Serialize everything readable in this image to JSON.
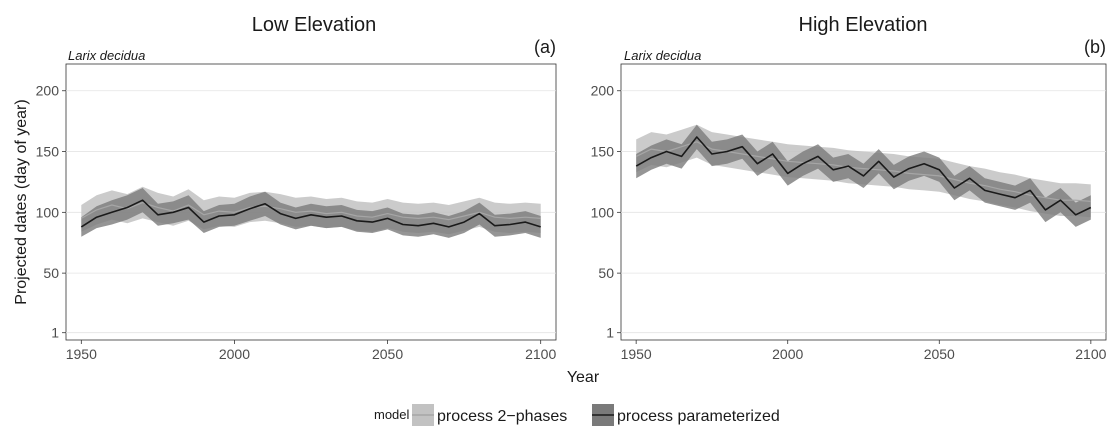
{
  "figure": {
    "shared_ylabel": "Projected dates (day of year)",
    "shared_xlabel": "Year"
  },
  "legend": {
    "title": "model",
    "entries": [
      {
        "name": "process 2−phases",
        "fill": "#c2c2c2",
        "line": "#a6a6a6"
      },
      {
        "name": "process parameterized",
        "fill": "#7a7a7a",
        "line": "#1a1a1a"
      }
    ]
  },
  "chart_data": [
    {
      "type": "line",
      "title": "Low Elevation",
      "panel_tag": "(a)",
      "species": "Larix decidua",
      "xlabel": "Year",
      "ylabel": "Projected dates (day of year)",
      "xlim": [
        1945,
        2105
      ],
      "ylim": [
        -5,
        222
      ],
      "xticks": [
        1950,
        2000,
        2050,
        2100
      ],
      "yticks": [
        1,
        50,
        100,
        150,
        200
      ],
      "grid": true,
      "legend_position": "bottom",
      "x": [
        1950,
        1955,
        1960,
        1965,
        1970,
        1975,
        1980,
        1985,
        1990,
        1995,
        2000,
        2005,
        2010,
        2015,
        2020,
        2025,
        2030,
        2035,
        2040,
        2045,
        2050,
        2055,
        2060,
        2065,
        2070,
        2075,
        2080,
        2085,
        2090,
        2095,
        2100
      ],
      "series": [
        {
          "name": "process 2−phases",
          "values": [
            95,
            102,
            106,
            103,
            108,
            104,
            101,
            106,
            98,
            101,
            100,
            104,
            105,
            103,
            100,
            101,
            99,
            100,
            97,
            96,
            99,
            96,
            95,
            96,
            94,
            97,
            100,
            96,
            95,
            96,
            95
          ],
          "lower": [
            84,
            90,
            94,
            91,
            95,
            92,
            89,
            93,
            86,
            89,
            88,
            92,
            93,
            91,
            88,
            89,
            87,
            88,
            85,
            84,
            87,
            84,
            83,
            84,
            82,
            85,
            88,
            84,
            83,
            84,
            83
          ],
          "upper": [
            106,
            114,
            118,
            115,
            121,
            116,
            113,
            119,
            110,
            113,
            112,
            116,
            117,
            115,
            112,
            113,
            111,
            112,
            109,
            108,
            111,
            108,
            107,
            108,
            106,
            109,
            112,
            108,
            107,
            108,
            107
          ]
        },
        {
          "name": "process parameterized",
          "values": [
            88,
            96,
            100,
            104,
            110,
            98,
            100,
            104,
            92,
            97,
            98,
            103,
            107,
            99,
            95,
            98,
            96,
            97,
            93,
            92,
            95,
            90,
            89,
            91,
            88,
            92,
            99,
            89,
            90,
            92,
            88
          ],
          "lower": [
            80,
            87,
            90,
            94,
            100,
            89,
            91,
            94,
            83,
            88,
            89,
            93,
            97,
            90,
            86,
            89,
            87,
            88,
            84,
            83,
            86,
            81,
            80,
            82,
            79,
            83,
            90,
            80,
            81,
            83,
            79
          ],
          "upper": [
            96,
            105,
            110,
            114,
            120,
            107,
            109,
            114,
            101,
            106,
            107,
            113,
            117,
            108,
            104,
            107,
            105,
            106,
            102,
            101,
            104,
            99,
            98,
            100,
            97,
            101,
            108,
            98,
            99,
            101,
            97
          ]
        }
      ]
    },
    {
      "type": "line",
      "title": "High Elevation",
      "panel_tag": "(b)",
      "species": "Larix decidua",
      "xlabel": "Year",
      "ylabel": "Projected dates (day of year)",
      "xlim": [
        1945,
        2105
      ],
      "ylim": [
        -5,
        222
      ],
      "xticks": [
        1950,
        2000,
        2050,
        2100
      ],
      "yticks": [
        1,
        50,
        100,
        150,
        200
      ],
      "grid": true,
      "legend_position": "bottom",
      "x": [
        1950,
        1955,
        1960,
        1965,
        1970,
        1975,
        1980,
        1985,
        1990,
        1995,
        2000,
        2005,
        2010,
        2015,
        2020,
        2025,
        2030,
        2035,
        2040,
        2045,
        2050,
        2055,
        2060,
        2065,
        2070,
        2075,
        2080,
        2085,
        2090,
        2095,
        2100
      ],
      "series": [
        {
          "name": "process 2−phases",
          "values": [
            146,
            152,
            150,
            154,
            158,
            152,
            150,
            148,
            146,
            144,
            142,
            141,
            140,
            139,
            137,
            136,
            135,
            134,
            132,
            131,
            130,
            127,
            124,
            122,
            119,
            117,
            114,
            112,
            110,
            110,
            109
          ],
          "lower": [
            133,
            139,
            137,
            141,
            145,
            139,
            137,
            135,
            133,
            131,
            129,
            128,
            127,
            126,
            124,
            123,
            122,
            121,
            119,
            118,
            117,
            114,
            111,
            109,
            106,
            104,
            101,
            99,
            97,
            97,
            96
          ],
          "upper": [
            160,
            166,
            164,
            168,
            172,
            166,
            164,
            162,
            160,
            158,
            156,
            155,
            154,
            153,
            151,
            150,
            149,
            148,
            146,
            145,
            144,
            141,
            138,
            136,
            133,
            131,
            128,
            126,
            124,
            124,
            123
          ]
        },
        {
          "name": "process parameterized",
          "values": [
            138,
            145,
            150,
            146,
            162,
            148,
            150,
            154,
            140,
            148,
            132,
            140,
            146,
            135,
            138,
            130,
            142,
            129,
            136,
            140,
            135,
            120,
            128,
            118,
            115,
            112,
            118,
            102,
            110,
            98,
            104
          ],
          "lower": [
            128,
            135,
            140,
            136,
            152,
            138,
            140,
            144,
            130,
            138,
            122,
            130,
            136,
            125,
            128,
            120,
            132,
            119,
            126,
            130,
            125,
            110,
            118,
            108,
            105,
            102,
            108,
            92,
            100,
            88,
            94
          ],
          "upper": [
            148,
            155,
            160,
            156,
            172,
            158,
            160,
            164,
            150,
            158,
            142,
            150,
            156,
            145,
            148,
            140,
            152,
            139,
            146,
            150,
            145,
            130,
            138,
            128,
            125,
            122,
            128,
            112,
            120,
            108,
            114
          ]
        }
      ]
    }
  ]
}
